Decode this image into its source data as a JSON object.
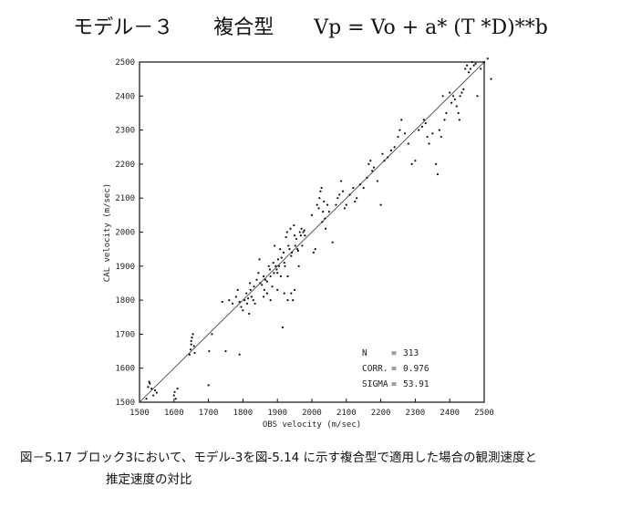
{
  "chart_data": {
    "type": "scatter",
    "title": "モデル－３　　複合型　　Vp = Vo + a* (T *D)**b",
    "xlabel": "OBS velocity (m/sec)",
    "ylabel": "CAL velocity (m/sec)",
    "xlim": [
      1500,
      2500
    ],
    "ylim": [
      1500,
      2500
    ],
    "xticks": [
      "1500",
      "1600",
      "1700",
      "1800",
      "1900",
      "2000",
      "2100",
      "2200",
      "2300",
      "2400",
      "2500"
    ],
    "yticks": [
      "1500",
      "1600",
      "1700",
      "1800",
      "1900",
      "2000",
      "2100",
      "2200",
      "2300",
      "2400",
      "2500"
    ],
    "reference_line": "y = x",
    "grid": false,
    "stats": [
      {
        "label": "N",
        "sep": "=",
        "value": "313"
      },
      {
        "label": "CORR.",
        "sep": "=",
        "value": "0.976"
      },
      {
        "label": "SIGMA",
        "sep": "=",
        "value": "53.91"
      }
    ],
    "points": [
      [
        1520,
        1510
      ],
      [
        1525,
        1545
      ],
      [
        1528,
        1560
      ],
      [
        1530,
        1555
      ],
      [
        1535,
        1540
      ],
      [
        1545,
        1535
      ],
      [
        1550,
        1528
      ],
      [
        1540,
        1520
      ],
      [
        1600,
        1520
      ],
      [
        1602,
        1530
      ],
      [
        1605,
        1510
      ],
      [
        1610,
        1540
      ],
      [
        1645,
        1640
      ],
      [
        1648,
        1655
      ],
      [
        1650,
        1670
      ],
      [
        1652,
        1690
      ],
      [
        1655,
        1700
      ],
      [
        1650,
        1680
      ],
      [
        1658,
        1665
      ],
      [
        1660,
        1645
      ],
      [
        1700,
        1550
      ],
      [
        1702,
        1650
      ],
      [
        1710,
        1700
      ],
      [
        1750,
        1650
      ],
      [
        1790,
        1640
      ],
      [
        1740,
        1795
      ],
      [
        1760,
        1800
      ],
      [
        1770,
        1790
      ],
      [
        1780,
        1810
      ],
      [
        1785,
        1830
      ],
      [
        1790,
        1795
      ],
      [
        1795,
        1780
      ],
      [
        1800,
        1770
      ],
      [
        1805,
        1800
      ],
      [
        1810,
        1820
      ],
      [
        1812,
        1790
      ],
      [
        1815,
        1805
      ],
      [
        1818,
        1760
      ],
      [
        1820,
        1850
      ],
      [
        1822,
        1830
      ],
      [
        1825,
        1810
      ],
      [
        1830,
        1800
      ],
      [
        1832,
        1840
      ],
      [
        1835,
        1790
      ],
      [
        1840,
        1860
      ],
      [
        1845,
        1880
      ],
      [
        1848,
        1920
      ],
      [
        1850,
        1850
      ],
      [
        1855,
        1845
      ],
      [
        1860,
        1870
      ],
      [
        1862,
        1830
      ],
      [
        1865,
        1860
      ],
      [
        1870,
        1855
      ],
      [
        1875,
        1900
      ],
      [
        1878,
        1890
      ],
      [
        1880,
        1870
      ],
      [
        1885,
        1840
      ],
      [
        1888,
        1910
      ],
      [
        1890,
        1880
      ],
      [
        1892,
        1960
      ],
      [
        1895,
        1900
      ],
      [
        1898,
        1890
      ],
      [
        1900,
        1880
      ],
      [
        1902,
        1920
      ],
      [
        1905,
        1900
      ],
      [
        1908,
        1950
      ],
      [
        1910,
        1870
      ],
      [
        1912,
        1925
      ],
      [
        1915,
        1720
      ],
      [
        1918,
        1940
      ],
      [
        1920,
        1910
      ],
      [
        1922,
        1900
      ],
      [
        1925,
        1985
      ],
      [
        1928,
        2000
      ],
      [
        1930,
        1870
      ],
      [
        1932,
        1960
      ],
      [
        1935,
        1950
      ],
      [
        1938,
        2010
      ],
      [
        1940,
        1930
      ],
      [
        1942,
        1940
      ],
      [
        1945,
        1800
      ],
      [
        1948,
        2020
      ],
      [
        1950,
        1990
      ],
      [
        1952,
        1960
      ],
      [
        1955,
        1980
      ],
      [
        1958,
        1950
      ],
      [
        1960,
        1945
      ],
      [
        1962,
        1900
      ],
      [
        1965,
        2000
      ],
      [
        1968,
        1990
      ],
      [
        1970,
        2010
      ],
      [
        1972,
        1960
      ],
      [
        1975,
        2000
      ],
      [
        1978,
        2005
      ],
      [
        1980,
        1990
      ],
      [
        1860,
        1810
      ],
      [
        1870,
        1820
      ],
      [
        1880,
        1800
      ],
      [
        1900,
        1830
      ],
      [
        1920,
        1820
      ],
      [
        1930,
        1800
      ],
      [
        1940,
        1820
      ],
      [
        1950,
        1830
      ],
      [
        2000,
        2050
      ],
      [
        2005,
        1940
      ],
      [
        2010,
        1950
      ],
      [
        2015,
        2080
      ],
      [
        2020,
        2070
      ],
      [
        2022,
        2100
      ],
      [
        2025,
        2120
      ],
      [
        2028,
        2130
      ],
      [
        2030,
        2030
      ],
      [
        2032,
        2060
      ],
      [
        2035,
        2090
      ],
      [
        2038,
        2040
      ],
      [
        2040,
        2010
      ],
      [
        2045,
        2080
      ],
      [
        2050,
        2060
      ],
      [
        2060,
        1970
      ],
      [
        2070,
        2080
      ],
      [
        2075,
        2100
      ],
      [
        2080,
        2110
      ],
      [
        2085,
        2150
      ],
      [
        2090,
        2120
      ],
      [
        2095,
        2070
      ],
      [
        2100,
        2080
      ],
      [
        2110,
        2110
      ],
      [
        2120,
        2130
      ],
      [
        2125,
        2090
      ],
      [
        2130,
        2100
      ],
      [
        2140,
        2140
      ],
      [
        2150,
        2130
      ],
      [
        2160,
        2160
      ],
      [
        2165,
        2200
      ],
      [
        2170,
        2210
      ],
      [
        2175,
        2180
      ],
      [
        2180,
        2190
      ],
      [
        2190,
        2150
      ],
      [
        2200,
        2080
      ],
      [
        2205,
        2230
      ],
      [
        2210,
        2210
      ],
      [
        2220,
        2220
      ],
      [
        2230,
        2240
      ],
      [
        2240,
        2250
      ],
      [
        2250,
        2280
      ],
      [
        2255,
        2300
      ],
      [
        2260,
        2330
      ],
      [
        2270,
        2290
      ],
      [
        2280,
        2260
      ],
      [
        2290,
        2200
      ],
      [
        2300,
        2210
      ],
      [
        2310,
        2300
      ],
      [
        2320,
        2310
      ],
      [
        2325,
        2330
      ],
      [
        2330,
        2320
      ],
      [
        2335,
        2280
      ],
      [
        2340,
        2260
      ],
      [
        2350,
        2290
      ],
      [
        2360,
        2200
      ],
      [
        2365,
        2170
      ],
      [
        2370,
        2300
      ],
      [
        2375,
        2280
      ],
      [
        2380,
        2400
      ],
      [
        2385,
        2330
      ],
      [
        2390,
        2350
      ],
      [
        2400,
        2410
      ],
      [
        2405,
        2380
      ],
      [
        2410,
        2400
      ],
      [
        2415,
        2390
      ],
      [
        2420,
        2370
      ],
      [
        2425,
        2350
      ],
      [
        2428,
        2330
      ],
      [
        2430,
        2400
      ],
      [
        2435,
        2410
      ],
      [
        2440,
        2420
      ],
      [
        2445,
        2480
      ],
      [
        2450,
        2490
      ],
      [
        2455,
        2470
      ],
      [
        2460,
        2480
      ],
      [
        2465,
        2500
      ],
      [
        2470,
        2490
      ],
      [
        2475,
        2495
      ],
      [
        2480,
        2400
      ],
      [
        2490,
        2480
      ],
      [
        2500,
        2500
      ],
      [
        2520,
        2450
      ],
      [
        2510,
        2510
      ]
    ]
  },
  "caption": {
    "line1": "図－5.17  ブロック3において、モデル-3を図-5.14 に示す複合型で適用した場合の観測速度と",
    "line2": "推定速度の対比"
  }
}
